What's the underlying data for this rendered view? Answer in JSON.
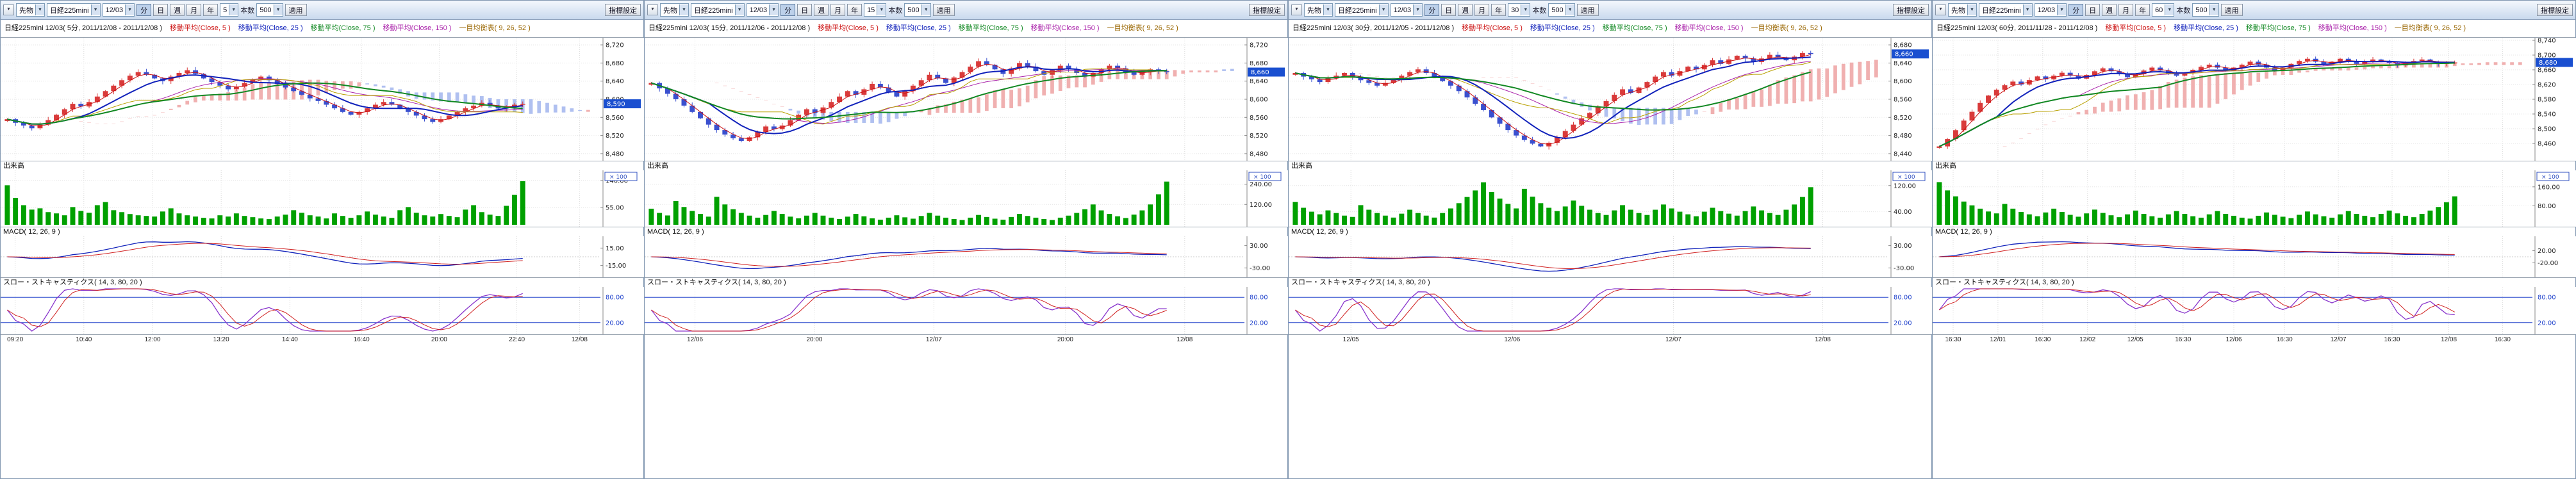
{
  "shared": {
    "toolbar": {
      "menu_icon": "▼",
      "category": "先物",
      "instrument": "日経225mini",
      "contract": "12/03",
      "minute_btn": "分",
      "bar_buttons": [
        "日",
        "週",
        "月",
        "年"
      ],
      "bars_label": "本数",
      "bars_value": "500",
      "apply": "適用",
      "settings": "指標設定"
    },
    "sections": {
      "volume": "出来高",
      "macd": "MACD( 12, 26, 9 )",
      "stoch": "スロー・ストキャスティクス( 14, 3, 80, 20 )",
      "volume_unit": "× 100"
    },
    "indicators": [
      {
        "label": "移動平均(Close, 5 )",
        "color": "#cc1111"
      },
      {
        "label": "移動平均(Close, 25 )",
        "color": "#1122bb"
      },
      {
        "label": "移動平均(Close, 75 )",
        "color": "#118822"
      },
      {
        "label": "移動平均(Close, 150 )",
        "color": "#aa22aa"
      },
      {
        "label": "一目均衡表( 9, 26, 52 )",
        "color": "#996600"
      }
    ]
  },
  "colors": {
    "up": "#d93a3a",
    "down": "#3a50cf",
    "ma_fast": "#cc1111",
    "ma_mid": "#1122bb",
    "ma_slow": "#118822",
    "ma_long": "#aa22aa",
    "kijun": "#b8a000",
    "cloud_up": "#f0b0b0",
    "cloud_down": "#b0c0f0",
    "volume": "#00a000",
    "macd": "#1122bb",
    "macd_signal": "#d02020",
    "stoch_k": "#8833cc",
    "stoch_d": "#d02020",
    "stoch_level": "#2244cc",
    "badge": "#1a4fd0",
    "grid": "#dcdcdc"
  },
  "panels": [
    {
      "minute": "5",
      "info": "日経225mini 12/03( 5分, 2011/12/08 - 2011/12/08 )",
      "chart_data": {
        "type": "candlestick",
        "price_range": [
          8470,
          8730
        ],
        "price_ticks": [
          8720,
          8680,
          8640,
          8600,
          8560,
          8520,
          8480
        ],
        "price": [
          8556,
          8548,
          8542,
          8536,
          8544,
          8554,
          8566,
          8578,
          8590,
          8584,
          8594,
          8606,
          8618,
          8630,
          8642,
          8652,
          8660,
          8654,
          8646,
          8640,
          8650,
          8658,
          8664,
          8656,
          8646,
          8638,
          8630,
          8622,
          8628,
          8636,
          8644,
          8650,
          8642,
          8634,
          8626,
          8618,
          8610,
          8602,
          8596,
          8588,
          8580,
          8572,
          8566,
          8572,
          8580,
          8588,
          8594,
          8588,
          8580,
          8572,
          8564,
          8556,
          8550,
          8556,
          8564,
          8572,
          8580,
          8586,
          8592,
          8586,
          8580,
          8584,
          8588,
          8590
        ],
        "volume": [
          125,
          85,
          62,
          48,
          52,
          40,
          36,
          30,
          56,
          44,
          38,
          62,
          72,
          46,
          40,
          34,
          30,
          28,
          26,
          42,
          52,
          36,
          30,
          26,
          22,
          20,
          30,
          26,
          36,
          28,
          24,
          20,
          18,
          26,
          32,
          46,
          38,
          30,
          26,
          20,
          36,
          28,
          22,
          30,
          42,
          32,
          26,
          22,
          46,
          56,
          38,
          30,
          26,
          34,
          28,
          24,
          48,
          62,
          40,
          32,
          28,
          60,
          95,
          138
        ],
        "volume_max": 150,
        "volume_ticks": [
          140,
          55
        ],
        "macd_ticks": [
          15,
          -15
        ],
        "stoch_levels": [
          80,
          20
        ],
        "x_labels": [
          {
            "t": "09:20",
            "p": 0.02
          },
          {
            "t": "10:40",
            "p": 0.135
          },
          {
            "t": "12:00",
            "p": 0.25
          },
          {
            "t": "13:20",
            "p": 0.365
          },
          {
            "t": "14:40",
            "p": 0.48
          },
          {
            "t": "16:40",
            "p": 0.6
          },
          {
            "t": "20:00",
            "p": 0.73
          },
          {
            "t": "22:40",
            "p": 0.86
          },
          {
            "t": "12/08",
            "p": 0.965
          }
        ]
      }
    },
    {
      "minute": "15",
      "info": "日経225mini 12/03( 15分, 2011/12/06 - 2011/12/08 )",
      "chart_data": {
        "type": "candlestick",
        "price_range": [
          8470,
          8730
        ],
        "price_ticks": [
          8720,
          8680,
          8640,
          8600,
          8560,
          8520,
          8480
        ],
        "price": [
          8636,
          8624,
          8612,
          8600,
          8586,
          8572,
          8558,
          8544,
          8532,
          8522,
          8514,
          8508,
          8516,
          8528,
          8540,
          8534,
          8542,
          8554,
          8566,
          8578,
          8570,
          8582,
          8594,
          8606,
          8618,
          8610,
          8622,
          8634,
          8626,
          8616,
          8606,
          8618,
          8630,
          8642,
          8654,
          8646,
          8636,
          8648,
          8660,
          8672,
          8684,
          8676,
          8666,
          8656,
          8668,
          8680,
          8672,
          8662,
          8654,
          8664,
          8674,
          8666,
          8658,
          8650,
          8658,
          8666,
          8674,
          8668,
          8660,
          8654,
          8660,
          8666,
          8662,
          8660
        ],
        "volume": [
          95,
          70,
          55,
          140,
          105,
          82,
          64,
          48,
          165,
          120,
          92,
          70,
          54,
          42,
          58,
          82,
          64,
          48,
          38,
          54,
          70,
          54,
          42,
          34,
          48,
          64,
          50,
          38,
          30,
          42,
          56,
          44,
          36,
          52,
          70,
          54,
          42,
          34,
          28,
          42,
          58,
          46,
          36,
          30,
          46,
          64,
          52,
          42,
          34,
          28,
          42,
          54,
          70,
          92,
          120,
          85,
          64,
          50,
          40,
          60,
          85,
          120,
          180,
          255
        ],
        "volume_max": 280,
        "volume_ticks": [
          240,
          120
        ],
        "macd_ticks": [
          30,
          -30
        ],
        "stoch_levels": [
          80,
          20
        ],
        "x_labels": [
          {
            "t": "12/06",
            "p": 0.08
          },
          {
            "t": "20:00",
            "p": 0.28
          },
          {
            "t": "12/07",
            "p": 0.48
          },
          {
            "t": "20:00",
            "p": 0.7
          },
          {
            "t": "12/08",
            "p": 0.9
          }
        ]
      }
    },
    {
      "minute": "30",
      "info": "日経225mini 12/03( 30分, 2011/12/05 - 2011/12/08 )",
      "chart_data": {
        "type": "candlestick",
        "price_range": [
          8430,
          8690
        ],
        "price_ticks": [
          8680,
          8640,
          8600,
          8560,
          8520,
          8480,
          8440
        ],
        "price": [
          8618,
          8610,
          8604,
          8598,
          8606,
          8612,
          8618,
          8610,
          8602,
          8596,
          8590,
          8596,
          8604,
          8612,
          8620,
          8626,
          8618,
          8610,
          8600,
          8590,
          8578,
          8564,
          8550,
          8536,
          8520,
          8506,
          8492,
          8480,
          8470,
          8462,
          8456,
          8464,
          8476,
          8490,
          8504,
          8518,
          8530,
          8544,
          8556,
          8570,
          8582,
          8574,
          8586,
          8598,
          8610,
          8620,
          8612,
          8622,
          8632,
          8626,
          8636,
          8646,
          8638,
          8648,
          8656,
          8650,
          8642,
          8650,
          8658,
          8652,
          8646,
          8654,
          8662,
          8660
        ],
        "volume": [
          70,
          52,
          40,
          32,
          44,
          36,
          28,
          24,
          60,
          46,
          36,
          28,
          22,
          34,
          46,
          36,
          28,
          22,
          36,
          50,
          66,
          85,
          105,
          130,
          100,
          80,
          64,
          50,
          110,
          86,
          66,
          52,
          42,
          56,
          74,
          58,
          46,
          36,
          30,
          44,
          60,
          46,
          36,
          30,
          46,
          62,
          50,
          40,
          32,
          26,
          40,
          52,
          42,
          34,
          28,
          42,
          56,
          44,
          36,
          30,
          46,
          62,
          85,
          115
        ],
        "volume_max": 145,
        "volume_ticks": [
          120,
          40
        ],
        "macd_ticks": [
          30,
          -30
        ],
        "stoch_levels": [
          80,
          20
        ],
        "x_labels": [
          {
            "t": "12/05",
            "p": 0.1
          },
          {
            "t": "12/06",
            "p": 0.37
          },
          {
            "t": "12/07",
            "p": 0.64
          },
          {
            "t": "12/08",
            "p": 0.89
          }
        ]
      }
    },
    {
      "minute": "60",
      "info": "日経225mini 12/03( 60分, 2011/11/28 - 2011/12/08 )",
      "chart_data": {
        "type": "candlestick",
        "price_range": [
          8420,
          8740
        ],
        "price_ticks": [
          8740,
          8700,
          8660,
          8620,
          8580,
          8540,
          8500,
          8460
        ],
        "price": [
          8452,
          8472,
          8496,
          8522,
          8546,
          8570,
          8590,
          8606,
          8618,
          8628,
          8620,
          8632,
          8642,
          8634,
          8644,
          8652,
          8644,
          8636,
          8646,
          8656,
          8664,
          8656,
          8648,
          8640,
          8648,
          8658,
          8666,
          8658,
          8650,
          8644,
          8652,
          8660,
          8668,
          8674,
          8666,
          8658,
          8666,
          8674,
          8682,
          8674,
          8666,
          8658,
          8666,
          8676,
          8684,
          8690,
          8682,
          8674,
          8682,
          8690,
          8684,
          8676,
          8682,
          8688,
          8684,
          8678,
          8672,
          8678,
          8684,
          8688,
          8682,
          8676,
          8680,
          8680
        ],
        "volume": [
          180,
          145,
          120,
          98,
          82,
          68,
          56,
          48,
          88,
          68,
          54,
          44,
          36,
          52,
          68,
          54,
          42,
          34,
          48,
          64,
          50,
          40,
          32,
          44,
          60,
          46,
          36,
          30,
          44,
          58,
          46,
          36,
          30,
          44,
          58,
          46,
          38,
          30,
          26,
          38,
          52,
          42,
          34,
          28,
          42,
          56,
          44,
          36,
          30,
          44,
          58,
          46,
          38,
          32,
          46,
          60,
          48,
          38,
          32,
          46,
          60,
          75,
          95,
          120
        ],
        "volume_max": 200,
        "volume_ticks": [
          160,
          80
        ],
        "macd_ticks": [
          20,
          -20
        ],
        "stoch_levels": [
          80,
          20
        ],
        "x_labels": [
          {
            "t": "16:30",
            "p": 0.03
          },
          {
            "t": "12/01",
            "p": 0.105
          },
          {
            "t": "16:30",
            "p": 0.18
          },
          {
            "t": "12/02",
            "p": 0.255
          },
          {
            "t": "12/05",
            "p": 0.335
          },
          {
            "t": "16:30",
            "p": 0.415
          },
          {
            "t": "12/06",
            "p": 0.5
          },
          {
            "t": "16:30",
            "p": 0.585
          },
          {
            "t": "12/07",
            "p": 0.675
          },
          {
            "t": "16:30",
            "p": 0.765
          },
          {
            "t": "12/08",
            "p": 0.86
          },
          {
            "t": "16:30",
            "p": 0.95
          }
        ]
      }
    }
  ]
}
